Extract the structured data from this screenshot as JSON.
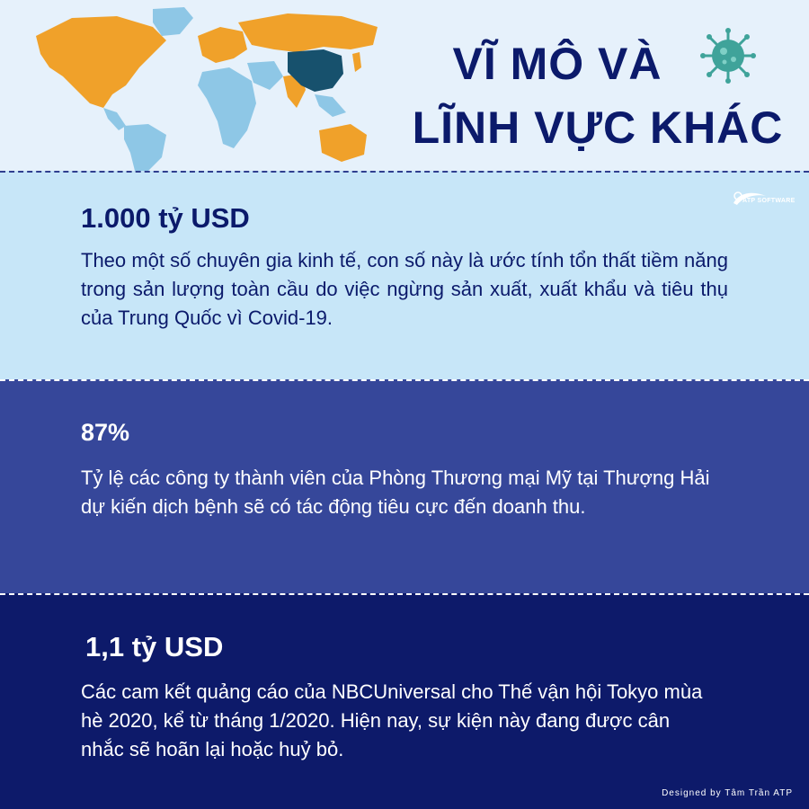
{
  "header": {
    "title_line1": "VĨ MÔ VÀ",
    "title_line2": "LĨNH VỰC KHÁC",
    "map_icon": "world-map-icon",
    "virus_icon": "virus-icon"
  },
  "colors": {
    "header_bg": "#e6f1fb",
    "section1_bg": "#c7e6f8",
    "section2_bg": "#36479a",
    "section3_bg": "#0d1a6a",
    "title": "#0b1a6b",
    "map_orange": "#f0a12a",
    "map_blue": "#8ec7e6",
    "map_china": "#17516d",
    "virus": "#3fa39a"
  },
  "logo": {
    "text": "ATP SOFTWARE"
  },
  "sections": [
    {
      "stat": "1.000 tỷ USD",
      "description": "Theo một số chuyên gia kinh tế, con số này là ước tính tổn thất tiềm năng trong sản lượng toàn cầu do việc ngừng sản xuất, xuất khẩu và tiêu thụ của Trung Quốc vì Covid-19."
    },
    {
      "stat": "87%",
      "description": "Tỷ lệ các công ty thành viên của Phòng Thương mại Mỹ tại Thượng Hải dự kiến dịch bệnh sẽ có tác động tiêu cực đến doanh thu."
    },
    {
      "stat": "1,1 tỷ USD",
      "description": "Các cam kết quảng cáo của NBCUniversal cho Thế vận hội Tokyo mùa hè 2020, kể từ tháng 1/2020. Hiện nay, sự kiện này đang được cân nhắc sẽ hoãn lại hoặc huỷ bỏ."
    }
  ],
  "footer": {
    "credit": "Designed by Tâm Trần ATP"
  }
}
